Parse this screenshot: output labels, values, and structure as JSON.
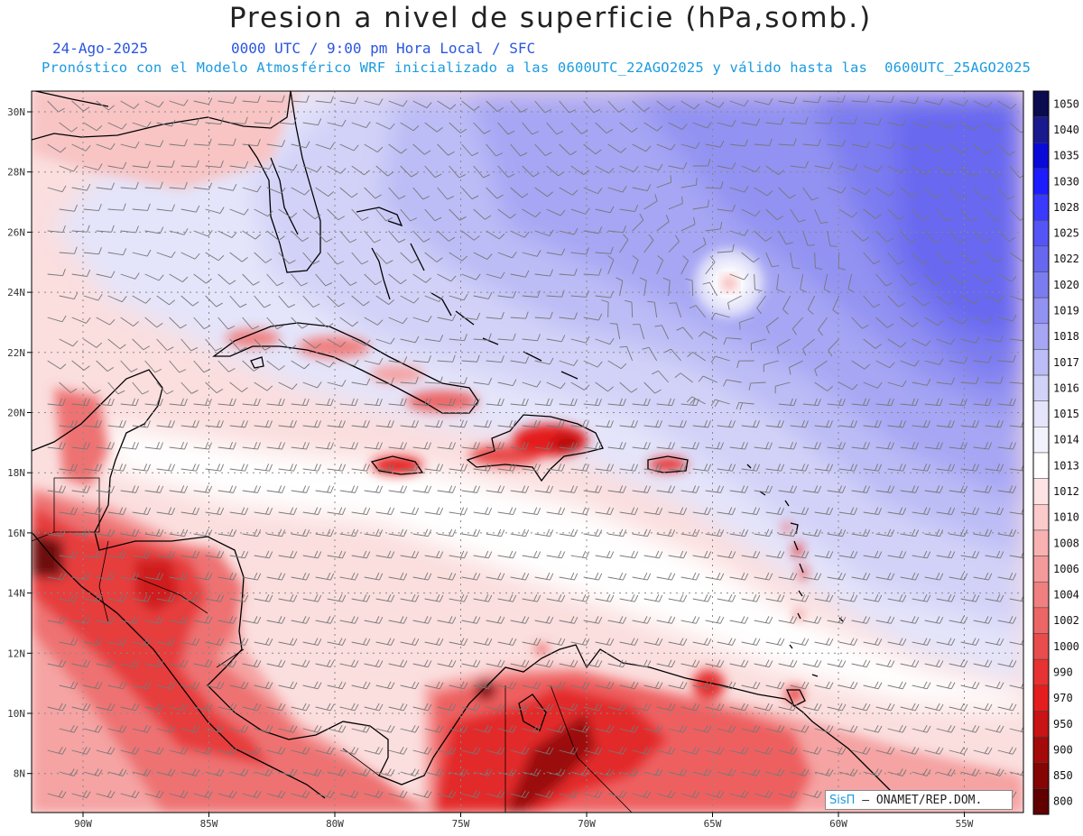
{
  "header": {
    "title": "Presion a nivel de superficie (hPa,somb.)",
    "date": "24-Ago-2025",
    "time_info": "0000 UTC / 9:00 pm Hora Local / SFC",
    "forecast_info": "Pronóstico con el Modelo Atmosférico WRF inicializado a las 0600UTC_22AGO2025 y válido hasta las  0600UTC_25AGO2025"
  },
  "map": {
    "lat_labels": [
      "30N",
      "28N",
      "26N",
      "24N",
      "22N",
      "20N",
      "18N",
      "16N",
      "14N",
      "12N",
      "10N",
      "8N"
    ],
    "lon_labels": [
      "90W",
      "85W",
      "80W",
      "75W",
      "70W",
      "65W",
      "60W",
      "55W"
    ],
    "low_center": "storm center near 24N 64W"
  },
  "colorbar": {
    "levels": [
      "1050",
      "1040",
      "1035",
      "1030",
      "1028",
      "1025",
      "1022",
      "1020",
      "1019",
      "1018",
      "1017",
      "1016",
      "1015",
      "1014",
      "1013",
      "1012",
      "1010",
      "1008",
      "1006",
      "1004",
      "1002",
      "1000",
      "990",
      "970",
      "950",
      "900",
      "850",
      "800"
    ],
    "colors": [
      "#0b0b4f",
      "#1a1a8f",
      "#0a0ad8",
      "#1c1cff",
      "#3a3aff",
      "#5555f7",
      "#6767f0",
      "#7c7cf1",
      "#9292f2",
      "#a6a6f4",
      "#bcbcf6",
      "#d2d2f8",
      "#e4e4fa",
      "#f2f2fc",
      "#ffffff",
      "#fde3e3",
      "#fbcaca",
      "#f8b2b2",
      "#f59a9a",
      "#f08080",
      "#ec6666",
      "#e84c4c",
      "#e63232",
      "#e41e1e",
      "#c81414",
      "#a50a0a",
      "#850505",
      "#600000"
    ]
  },
  "credit": {
    "logo": "SisΠ",
    "text": " – ONAMET/REP.DOM."
  }
}
